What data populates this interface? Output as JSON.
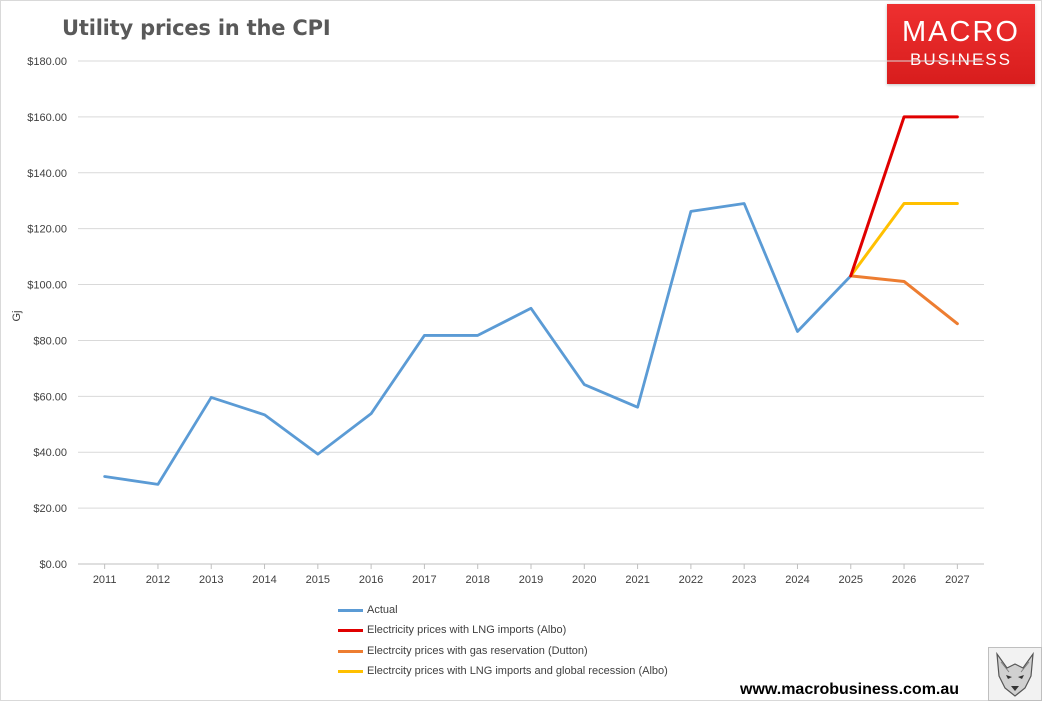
{
  "page": {
    "title": "Utility prices in the CPI",
    "logo_top": "MACRO",
    "logo_bottom": "BUSINESS",
    "url": "www.macrobusiness.com.au",
    "logo_icon": "wolf-icon"
  },
  "chart_data": {
    "type": "line",
    "title": "Utility prices in the CPI",
    "xlabel": "",
    "ylabel": "Gj",
    "ylim": [
      0,
      180
    ],
    "ytick_step": 20,
    "ytick_labels": [
      "$0.00",
      "$20.00",
      "$40.00",
      "$60.00",
      "$80.00",
      "$100.00",
      "$120.00",
      "$140.00",
      "$160.00",
      "$180.00"
    ],
    "grid": true,
    "legend_position": "bottom",
    "categories": [
      "2011",
      "2012",
      "2013",
      "2014",
      "2015",
      "2016",
      "2017",
      "2018",
      "2019",
      "2020",
      "2021",
      "2022",
      "2023",
      "2024",
      "2025",
      "2026",
      "2027"
    ],
    "series": [
      {
        "name": "Actual",
        "color": "#5b9bd5",
        "values": [
          31.3,
          28.5,
          59.6,
          53.4,
          39.3,
          53.8,
          81.8,
          81.8,
          91.5,
          64.2,
          56.1,
          126.2,
          129.0,
          83.2,
          103.1,
          null,
          null
        ]
      },
      {
        "name": "Electricity prices with LNG imports (Albo)",
        "color": "#e00000",
        "values": [
          null,
          null,
          null,
          null,
          null,
          null,
          null,
          null,
          null,
          null,
          null,
          null,
          null,
          null,
          103.1,
          160.0,
          160.0
        ]
      },
      {
        "name": "Electrcity prices with gas reservation (Dutton)",
        "color": "#ed7d31",
        "values": [
          null,
          null,
          null,
          null,
          null,
          null,
          null,
          null,
          null,
          null,
          null,
          null,
          null,
          null,
          103.1,
          101.1,
          86.0
        ]
      },
      {
        "name": "Electrcity prices with LNG imports and global recession (Albo)",
        "color": "#ffc000",
        "values": [
          null,
          null,
          null,
          null,
          null,
          null,
          null,
          null,
          null,
          null,
          null,
          null,
          null,
          null,
          103.1,
          129.0,
          129.0
        ]
      }
    ]
  }
}
